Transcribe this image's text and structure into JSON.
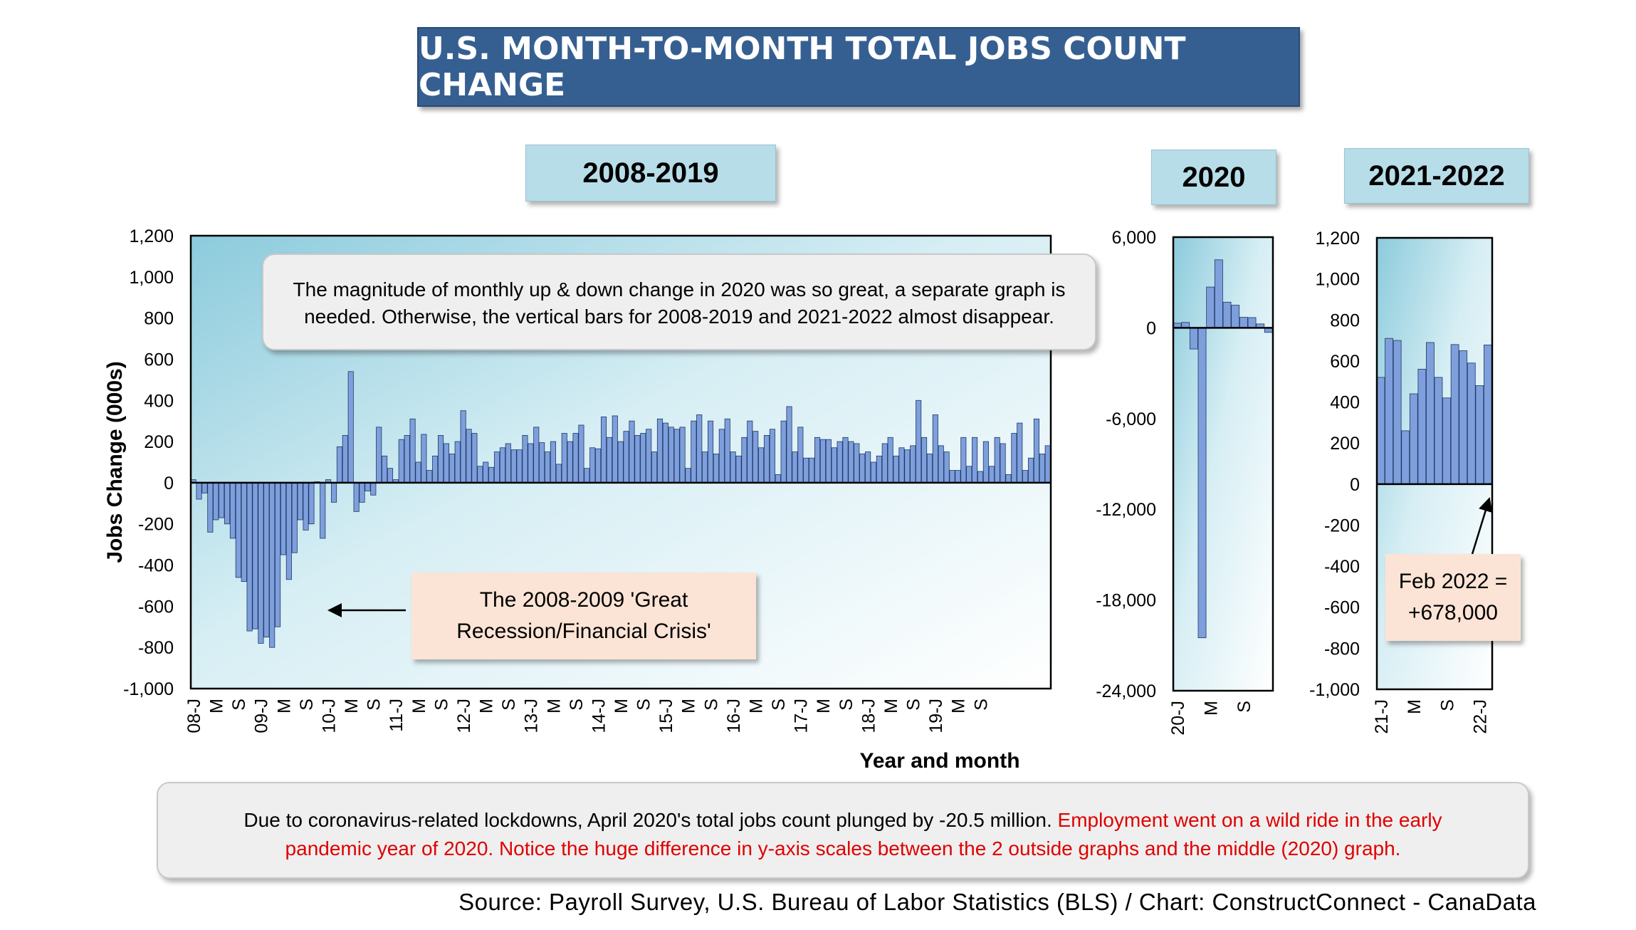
{
  "title": "U.S. MONTH-TO-MONTH TOTAL JOBS COUNT CHANGE",
  "panels": {
    "p1": "2008-2019",
    "p2": "2020",
    "p3": "2021-2022"
  },
  "annotation_top": "The magnitude of monthly up & down change in 2020 was so great, a separate graph is needed. Otherwise, the vertical bars for 2008-2019 and 2021-2022 almost disappear.",
  "callout_recession": {
    "line1": "The 2008-2009 'Great",
    "line2": "Recession/Financial Crisis'"
  },
  "callout_feb": {
    "line1": "Feb 2022 =",
    "line2": "+678,000"
  },
  "note": {
    "black": "Due to coronavirus-related lockdowns, April 2020's total jobs count plunged by -20.5 million. ",
    "red": "Employment went on a wild ride in the early pandemic year of 2020. Notice the huge difference in y-axis scales between the 2 outside graphs and the middle (2020) graph."
  },
  "source": "Source: Payroll Survey, U.S. Bureau of Labor Statistics (BLS) / Chart: ConstructConnect - CanaData",
  "colors": {
    "bar": "#7e9fdc",
    "title_bg": "#365f91",
    "panel_bg": "#b7dde8"
  },
  "chart_data": [
    {
      "type": "bar",
      "title": "2008-2019",
      "xlabel": "Year and month",
      "ylabel": "Jobs Change (000s)",
      "ylim": [
        -1000,
        1200
      ],
      "yticks": [
        "1,200",
        "1,000",
        "800",
        "600",
        "400",
        "200",
        "0",
        "-200",
        "-400",
        "-600",
        "-800",
        "-1,000"
      ],
      "xticks": [
        "08-J",
        "M",
        "S",
        "09-J",
        "M",
        "S",
        "10-J",
        "M",
        "S",
        "11-J",
        "M",
        "S",
        "12-J",
        "M",
        "S",
        "13-J",
        "M",
        "S",
        "14-J",
        "M",
        "S",
        "15-J",
        "M",
        "S",
        "16-J",
        "M",
        "S",
        "17-J",
        "M",
        "S",
        "18-J",
        "M",
        "S",
        "19-J",
        "M",
        "S"
      ],
      "xtick_step": 4,
      "start": "2008-01",
      "values": [
        15,
        -80,
        -50,
        -240,
        -180,
        -170,
        -200,
        -270,
        -460,
        -480,
        -720,
        -710,
        -780,
        -750,
        -800,
        -700,
        -350,
        -470,
        -340,
        -180,
        -230,
        -200,
        5,
        -270,
        15,
        -95,
        175,
        230,
        540,
        -140,
        -95,
        -40,
        -60,
        270,
        130,
        70,
        15,
        210,
        230,
        310,
        100,
        235,
        60,
        130,
        230,
        190,
        140,
        200,
        350,
        260,
        240,
        80,
        100,
        75,
        150,
        170,
        190,
        160,
        160,
        230,
        190,
        270,
        195,
        150,
        200,
        90,
        240,
        200,
        240,
        280,
        70,
        170,
        165,
        320,
        220,
        325,
        200,
        250,
        300,
        230,
        240,
        260,
        150,
        310,
        290,
        270,
        260,
        270,
        70,
        300,
        330,
        150,
        300,
        140,
        260,
        310,
        150,
        130,
        220,
        300,
        250,
        170,
        230,
        260,
        40,
        300,
        370,
        150,
        270,
        120,
        120,
        220,
        210,
        210,
        170,
        200,
        220,
        200,
        190,
        140,
        150,
        100,
        130,
        190,
        220,
        130,
        170,
        160,
        180,
        400,
        220,
        140,
        330,
        180,
        150,
        60,
        60,
        220,
        80,
        220,
        55,
        200,
        80,
        220,
        190,
        40,
        240,
        290,
        60,
        120,
        310,
        140,
        180
      ],
      "note": "monthly values estimated from graph"
    },
    {
      "type": "bar",
      "title": "2020",
      "ylabel": "",
      "ylim": [
        -24000,
        6000
      ],
      "yticks": [
        "6,000",
        "0",
        "-6,000",
        "-12,000",
        "-18,000",
        "-24,000"
      ],
      "xticks": [
        "20-J",
        "M",
        "S"
      ],
      "xtick_step": 4,
      "start": "2020-01",
      "values": [
        310,
        360,
        -1400,
        -20500,
        2700,
        4500,
        1700,
        1500,
        700,
        680,
        260,
        -300
      ]
    },
    {
      "type": "bar",
      "title": "2021-2022",
      "ylim": [
        -1000,
        1200
      ],
      "yticks": [
        "1,200",
        "1,000",
        "800",
        "600",
        "400",
        "200",
        "0",
        "-200",
        "-400",
        "-600",
        "-800",
        "-1,000"
      ],
      "xticks": [
        "21-J",
        "M",
        "S",
        "22-J"
      ],
      "xtick_step": 4,
      "start": "2021-01",
      "values": [
        520,
        710,
        700,
        260,
        440,
        560,
        690,
        520,
        420,
        680,
        650,
        590,
        480,
        678
      ]
    }
  ]
}
